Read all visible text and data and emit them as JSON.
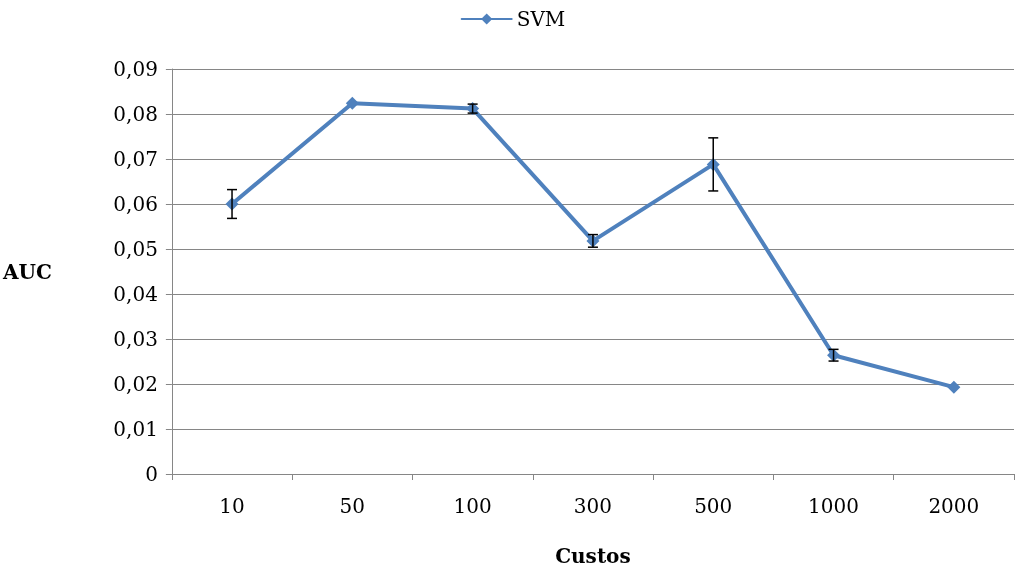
{
  "chart_data": {
    "type": "line",
    "xlabel": "Custos",
    "ylabel": "AUC",
    "categories": [
      "10",
      "50",
      "100",
      "300",
      "500",
      "1000",
      "2000"
    ],
    "series": [
      {
        "name": "SVM",
        "color": "#4f81bd",
        "values": [
          0.06,
          0.0824,
          0.0812,
          0.0518,
          0.0688,
          0.0264,
          0.0193
        ],
        "errors": [
          0.0032,
          null,
          0.001,
          0.0014,
          0.0059,
          0.0013,
          null
        ]
      }
    ],
    "ylim": [
      0,
      0.09
    ],
    "yticks": [
      0,
      {
        "value": 0.01,
        "label": "0,01"
      },
      {
        "value": 0.02,
        "label": "0,02"
      },
      {
        "value": 0.03,
        "label": "0,03"
      },
      {
        "value": 0.04,
        "label": "0,04"
      },
      {
        "value": 0.05,
        "label": "0,05"
      },
      {
        "value": 0.06,
        "label": "0,06"
      },
      {
        "value": 0.07,
        "label": "0,07"
      },
      {
        "value": 0.08,
        "label": "0,08"
      },
      {
        "value": 0.09,
        "label": "0,09"
      }
    ],
    "grid": "y",
    "legend": "top",
    "marker": "diamond",
    "line_style": "solid"
  }
}
